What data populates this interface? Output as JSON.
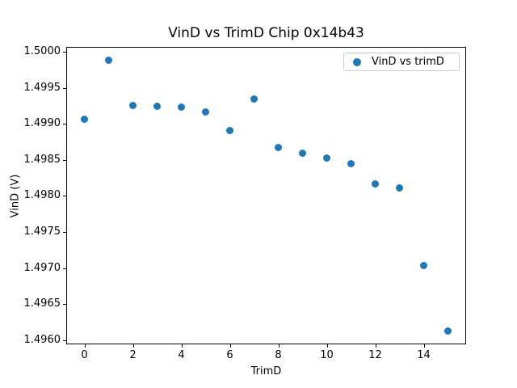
{
  "chart_data": {
    "type": "scatter",
    "title": "VinD vs TrimD Chip 0x14b43",
    "xlabel": "TrimD",
    "ylabel": "VinD (V)",
    "xlim": [
      -0.75,
      15.75
    ],
    "ylim": [
      1.49594,
      1.50007
    ],
    "xticks": [
      0,
      2,
      4,
      6,
      8,
      10,
      12,
      14
    ],
    "yticks": [
      1.496,
      1.4965,
      1.497,
      1.4975,
      1.498,
      1.4985,
      1.499,
      1.4995,
      1.5
    ],
    "ytick_decimals": 4,
    "grid": false,
    "marker_color": "#1f77b4",
    "legend": {
      "label": "VinD vs trimD",
      "position": "upper right"
    },
    "series": [
      {
        "name": "VinD vs trimD",
        "x": [
          0,
          1,
          2,
          3,
          4,
          5,
          6,
          7,
          8,
          9,
          10,
          11,
          12,
          13,
          14,
          15
        ],
        "y": [
          1.49906,
          1.49988,
          1.49926,
          1.49924,
          1.49923,
          1.49917,
          1.49891,
          1.49935,
          1.49867,
          1.49859,
          1.49853,
          1.49845,
          1.49817,
          1.49811,
          1.49703,
          1.49612
        ]
      }
    ]
  }
}
